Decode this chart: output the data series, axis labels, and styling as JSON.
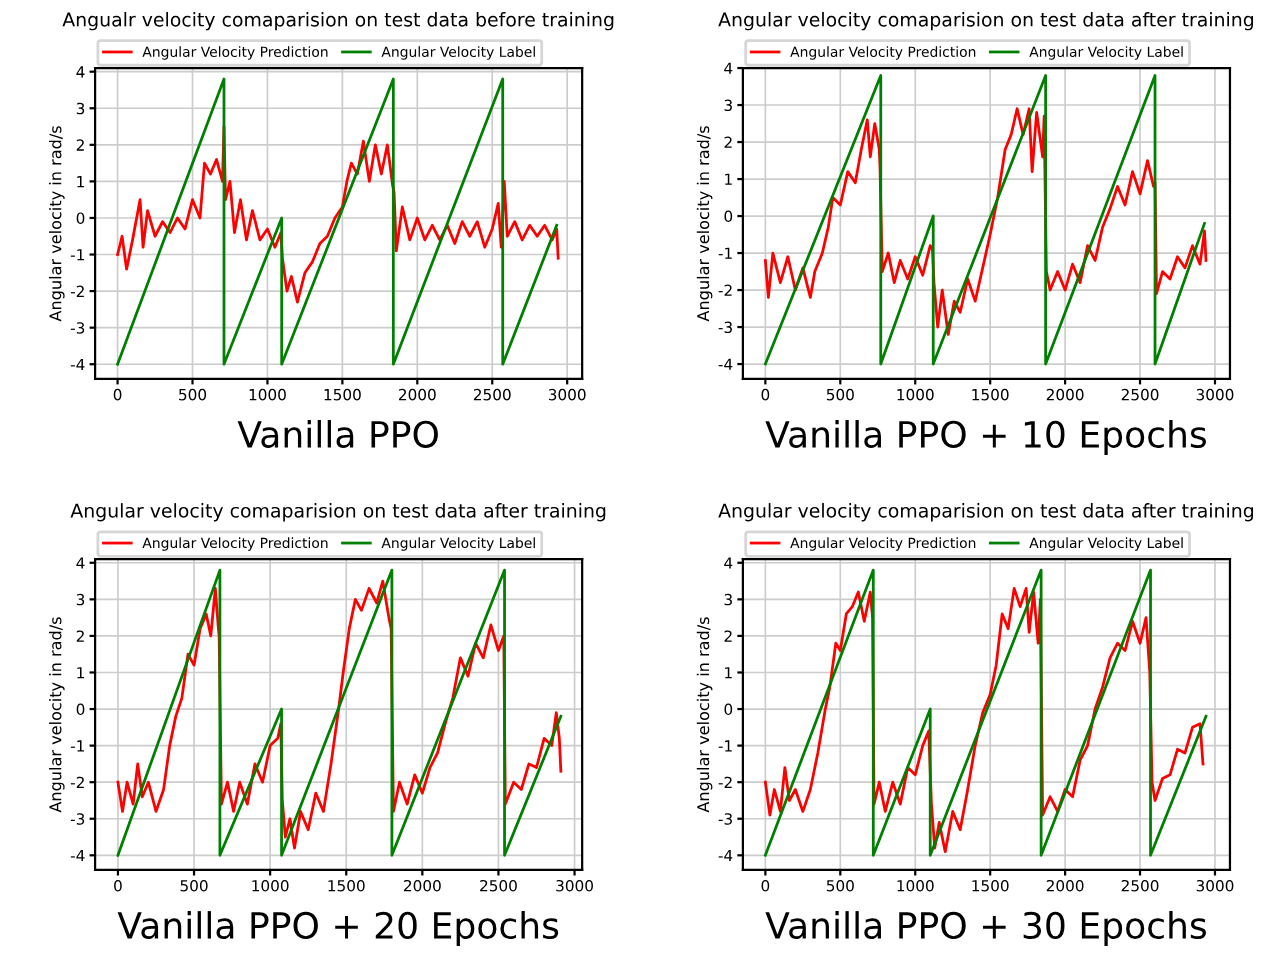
{
  "chart_data": [
    {
      "type": "line",
      "title": "Angualr velocity comaparision on test data before training",
      "xlabel": "Vanilla PPO",
      "ylabel": "Angular velocity in rad/s",
      "xlim": [
        -150,
        3100
      ],
      "ylim": [
        -4.4,
        4.1
      ],
      "xticks": [
        0,
        500,
        1000,
        1500,
        2000,
        2500,
        3000
      ],
      "yticks": [
        -4,
        -3,
        -2,
        -1,
        0,
        1,
        2,
        3,
        4
      ],
      "grid": true,
      "legend": "top left",
      "series": [
        {
          "name": "Angular Velocity Prediction",
          "color": "#ff0000",
          "x": [
            0,
            30,
            60,
            100,
            150,
            170,
            200,
            250,
            300,
            350,
            400,
            450,
            500,
            550,
            580,
            620,
            660,
            700,
            710,
            720,
            750,
            780,
            820,
            860,
            900,
            950,
            1000,
            1050,
            1090,
            1100,
            1130,
            1160,
            1200,
            1250,
            1300,
            1350,
            1400,
            1450,
            1500,
            1530,
            1560,
            1600,
            1640,
            1680,
            1720,
            1760,
            1800,
            1835,
            1845,
            1860,
            1900,
            1950,
            2000,
            2050,
            2100,
            2150,
            2200,
            2250,
            2300,
            2350,
            2400,
            2450,
            2500,
            2540,
            2560,
            2580,
            2600,
            2650,
            2700,
            2750,
            2800,
            2850,
            2900,
            2930,
            2940
          ],
          "values": [
            -1.0,
            -0.5,
            -1.4,
            -0.6,
            0.5,
            -0.8,
            0.2,
            -0.5,
            -0.1,
            -0.4,
            0.0,
            -0.3,
            0.5,
            0.0,
            1.5,
            1.2,
            1.6,
            1.0,
            2.5,
            0.5,
            1.0,
            -0.4,
            0.5,
            -0.6,
            0.2,
            -0.6,
            -0.3,
            -0.8,
            -0.4,
            -1.1,
            -2.0,
            -1.6,
            -2.3,
            -1.5,
            -1.2,
            -0.7,
            -0.5,
            0.0,
            0.3,
            1.0,
            1.5,
            1.2,
            2.1,
            1.0,
            2.0,
            1.2,
            2.0,
            0.9,
            0.7,
            -0.9,
            0.3,
            -0.6,
            0.0,
            -0.6,
            -0.2,
            -0.6,
            -0.2,
            -0.7,
            -0.1,
            -0.5,
            -0.1,
            -0.8,
            -0.3,
            0.4,
            -0.8,
            1.0,
            -0.5,
            -0.1,
            -0.6,
            -0.2,
            -0.5,
            -0.2,
            -0.6,
            -0.3,
            -1.1
          ]
        },
        {
          "name": "Angular Velocity Label",
          "color": "#008000",
          "x": [
            0,
            710,
            710,
            1095,
            1095,
            1840,
            1840,
            2570,
            2570,
            2930
          ],
          "values": [
            -4,
            3.8,
            -4,
            0,
            -4,
            3.8,
            -4,
            3.8,
            -4,
            -0.2
          ]
        }
      ]
    },
    {
      "type": "line",
      "title": "Angular velocity comaparision on test data after training",
      "xlabel": "Vanilla PPO + 10 Epochs",
      "ylabel": "Angular velocity in rad/s",
      "xlim": [
        -150,
        3100
      ],
      "ylim": [
        -4.4,
        4.0
      ],
      "xticks": [
        0,
        500,
        1000,
        1500,
        2000,
        2500,
        3000
      ],
      "yticks": [
        -4,
        -3,
        -2,
        -1,
        0,
        1,
        2,
        3,
        4
      ],
      "grid": true,
      "legend": "top left",
      "series": [
        {
          "name": "Angular Velocity Prediction",
          "color": "#ff0000",
          "x": [
            0,
            20,
            50,
            100,
            150,
            200,
            250,
            300,
            330,
            380,
            420,
            450,
            500,
            550,
            600,
            640,
            680,
            700,
            730,
            760,
            765,
            780,
            820,
            860,
            900,
            950,
            1000,
            1050,
            1100,
            1115,
            1125,
            1150,
            1180,
            1220,
            1260,
            1300,
            1350,
            1400,
            1450,
            1500,
            1550,
            1600,
            1640,
            1680,
            1720,
            1760,
            1780,
            1810,
            1850,
            1860,
            1875,
            1900,
            1950,
            2000,
            2050,
            2100,
            2150,
            2200,
            2250,
            2300,
            2350,
            2400,
            2450,
            2500,
            2550,
            2590,
            2600,
            2610,
            2650,
            2700,
            2750,
            2800,
            2850,
            2900,
            2930,
            2940
          ],
          "values": [
            -1.2,
            -2.2,
            -1.0,
            -1.8,
            -1.1,
            -2.0,
            -1.4,
            -2.2,
            -1.5,
            -1.0,
            -0.3,
            0.5,
            0.3,
            1.2,
            0.9,
            1.8,
            2.6,
            1.6,
            2.5,
            1.8,
            1.3,
            -1.5,
            -1.0,
            -1.8,
            -1.2,
            -1.7,
            -1.1,
            -1.6,
            -0.8,
            -0.9,
            -1.8,
            -3.0,
            -2.0,
            -3.2,
            -2.3,
            -2.6,
            -1.7,
            -2.3,
            -1.4,
            -0.5,
            0.5,
            1.8,
            2.2,
            2.9,
            2.2,
            2.9,
            1.2,
            2.8,
            1.6,
            2.7,
            -1.5,
            -2.0,
            -1.5,
            -2.0,
            -1.3,
            -1.8,
            -0.8,
            -1.2,
            -0.3,
            0.2,
            0.8,
            0.3,
            1.2,
            0.6,
            1.5,
            0.8,
            0.9,
            -2.1,
            -1.5,
            -1.7,
            -1.1,
            -1.4,
            -0.8,
            -1.3,
            -0.4,
            -1.2
          ]
        },
        {
          "name": "Angular Velocity Label",
          "color": "#008000",
          "x": [
            0,
            770,
            770,
            1120,
            1120,
            1870,
            1870,
            2600,
            2600,
            2930
          ],
          "values": [
            -4,
            3.8,
            -4,
            0,
            -4,
            3.8,
            -4,
            3.8,
            -4,
            -0.2
          ]
        }
      ]
    },
    {
      "type": "line",
      "title": "Angular velocity comaparision on test data after training",
      "xlabel": "Vanilla PPO + 20 Epochs",
      "ylabel": "Angular velocity in rad/s",
      "xlim": [
        -150,
        3050
      ],
      "ylim": [
        -4.4,
        4.1
      ],
      "xticks": [
        0,
        500,
        1000,
        1500,
        2000,
        2500,
        3000
      ],
      "yticks": [
        -4,
        -3,
        -2,
        -1,
        0,
        1,
        2,
        3,
        4
      ],
      "grid": true,
      "legend": "top left",
      "series": [
        {
          "name": "Angular Velocity Prediction",
          "color": "#ff0000",
          "x": [
            0,
            30,
            60,
            100,
            130,
            160,
            200,
            250,
            300,
            340,
            380,
            420,
            460,
            500,
            540,
            580,
            610,
            640,
            660,
            665,
            680,
            720,
            760,
            800,
            850,
            900,
            950,
            1000,
            1050,
            1070,
            1080,
            1100,
            1130,
            1160,
            1200,
            1250,
            1300,
            1350,
            1400,
            1450,
            1480,
            1520,
            1560,
            1600,
            1650,
            1700,
            1740,
            1780,
            1795,
            1810,
            1850,
            1900,
            1950,
            2000,
            2050,
            2100,
            2150,
            2200,
            2250,
            2300,
            2350,
            2400,
            2450,
            2500,
            2535,
            2545,
            2600,
            2650,
            2700,
            2750,
            2800,
            2850,
            2880,
            2900,
            2910
          ],
          "values": [
            -2.0,
            -2.8,
            -2.0,
            -2.6,
            -1.5,
            -2.4,
            -2.0,
            -2.8,
            -2.2,
            -1.0,
            -0.2,
            0.3,
            1.5,
            1.2,
            2.2,
            2.6,
            2.0,
            3.3,
            2.2,
            2.0,
            -2.6,
            -2.0,
            -2.8,
            -2.0,
            -2.6,
            -1.5,
            -2.0,
            -1.0,
            -0.8,
            -0.4,
            -2.5,
            -3.5,
            -3.0,
            -3.8,
            -2.8,
            -3.3,
            -2.3,
            -2.8,
            -1.5,
            0.0,
            1.0,
            2.2,
            3.0,
            2.7,
            3.3,
            2.9,
            3.5,
            2.5,
            2.2,
            -2.8,
            -2.0,
            -2.6,
            -1.8,
            -2.3,
            -1.6,
            -1.2,
            -0.4,
            0.3,
            1.4,
            0.9,
            1.8,
            1.4,
            2.3,
            1.6,
            2.0,
            -2.6,
            -2.0,
            -2.2,
            -1.5,
            -1.6,
            -0.8,
            -1.0,
            -0.1,
            -0.8,
            -1.7
          ]
        },
        {
          "name": "Angular Velocity Label",
          "color": "#008000",
          "x": [
            0,
            670,
            670,
            1075,
            1075,
            1800,
            1800,
            2540,
            2540,
            2910
          ],
          "values": [
            -4,
            3.8,
            -4,
            0,
            -4,
            3.8,
            -4,
            3.8,
            -4,
            -0.2
          ]
        }
      ]
    },
    {
      "type": "line",
      "title": "Angular velocity comaparision on test data after training",
      "xlabel": "Vanilla PPO + 30 Epochs",
      "ylabel": "Angular velocity in rad/s",
      "xlim": [
        -150,
        3100
      ],
      "ylim": [
        -4.4,
        4.1
      ],
      "xticks": [
        0,
        500,
        1000,
        1500,
        2000,
        2500,
        3000
      ],
      "yticks": [
        -4,
        -3,
        -2,
        -1,
        0,
        1,
        2,
        3,
        4
      ],
      "grid": true,
      "legend": "top left",
      "series": [
        {
          "name": "Angular Velocity Prediction",
          "color": "#ff0000",
          "x": [
            0,
            30,
            60,
            100,
            130,
            160,
            200,
            250,
            300,
            350,
            400,
            430,
            470,
            500,
            540,
            580,
            620,
            660,
            700,
            715,
            725,
            760,
            800,
            850,
            900,
            950,
            1000,
            1050,
            1090,
            1108,
            1130,
            1160,
            1200,
            1250,
            1300,
            1350,
            1400,
            1450,
            1500,
            1540,
            1580,
            1620,
            1660,
            1700,
            1740,
            1760,
            1790,
            1820,
            1835,
            1850,
            1900,
            1950,
            2000,
            2050,
            2100,
            2150,
            2200,
            2250,
            2300,
            2350,
            2400,
            2450,
            2500,
            2540,
            2565,
            2580,
            2600,
            2650,
            2700,
            2750,
            2800,
            2850,
            2900,
            2920
          ],
          "values": [
            -2.0,
            -2.9,
            -2.2,
            -2.8,
            -1.6,
            -2.5,
            -2.2,
            -2.8,
            -2.2,
            -1.2,
            0.0,
            0.6,
            1.8,
            1.6,
            2.6,
            2.8,
            3.2,
            2.4,
            3.2,
            2.5,
            -2.6,
            -2.0,
            -2.8,
            -2.0,
            -2.6,
            -1.6,
            -1.8,
            -1.0,
            -0.6,
            -2.6,
            -3.8,
            -3.1,
            -3.9,
            -2.8,
            -3.3,
            -2.2,
            -1.0,
            -0.1,
            0.4,
            1.2,
            2.6,
            2.2,
            3.3,
            2.8,
            3.3,
            2.1,
            3.2,
            1.8,
            3.0,
            -2.9,
            -2.4,
            -2.8,
            -2.2,
            -2.4,
            -1.4,
            -1.0,
            0.0,
            0.6,
            1.4,
            1.8,
            1.6,
            2.4,
            1.8,
            2.5,
            1.0,
            -2.0,
            -2.5,
            -1.9,
            -1.8,
            -1.1,
            -1.2,
            -0.5,
            -0.4,
            -1.5
          ]
        },
        {
          "name": "Angular Velocity Label",
          "color": "#008000",
          "x": [
            0,
            720,
            720,
            1100,
            1100,
            1840,
            1840,
            2570,
            2570,
            2940
          ],
          "values": [
            -4,
            3.8,
            -4,
            0,
            -4,
            3.8,
            -4,
            3.8,
            -4,
            -0.2
          ]
        }
      ]
    }
  ]
}
